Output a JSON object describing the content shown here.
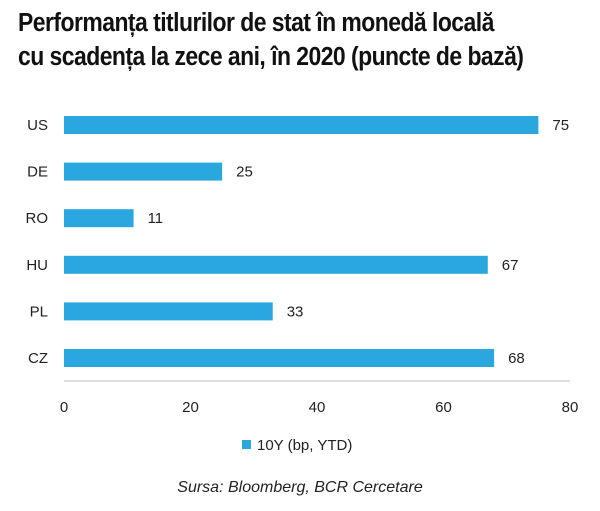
{
  "title_line1": "Performanța titlurilor de stat în monedă locală",
  "title_line2": "cu scadența la zece ani, în 2020 (puncte de bază)",
  "source": "Sursa: Bloomberg, BCR Cercetare",
  "chart_data": {
    "type": "bar",
    "orientation": "horizontal",
    "categories": [
      "US",
      "DE",
      "RO",
      "HU",
      "PL",
      "CZ"
    ],
    "series": [
      {
        "name": "10Y (bp, YTD)",
        "values": [
          75,
          25,
          11,
          67,
          33,
          68
        ]
      }
    ],
    "xlim": [
      0,
      80
    ],
    "xticks": [
      0,
      20,
      40,
      60,
      80
    ],
    "grid": false,
    "legend_position": "bottom",
    "bar_color": "#2aa7df"
  }
}
